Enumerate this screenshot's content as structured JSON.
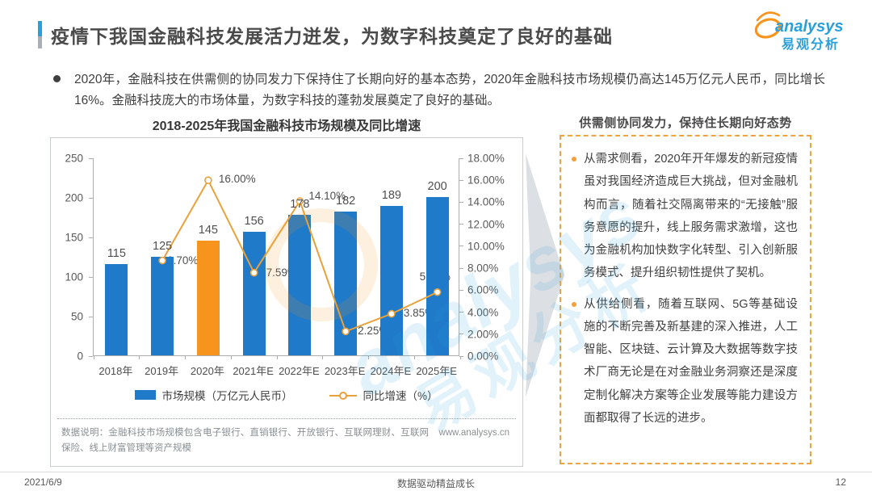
{
  "page": {
    "title": "疫情下我国金融科技发展活力迸发，为数字科技奠定了良好的基础",
    "footer": {
      "date": "2021/6/9",
      "slogan": "数据驱动精益成长",
      "page_number": "12"
    }
  },
  "logo": {
    "brand": "analysys",
    "brand_cn": "易观分析"
  },
  "summary_bullet": "2020年，金融科技在供需侧的协同发力下保持住了长期向好的基本态势，2020年金融科技市场规模仍高达145万亿元人民币，同比增长16%。金融科技庞大的市场体量，为数字科技的蓬勃发展奠定了良好的基础。",
  "chart": {
    "title": "2018-2025年我国金融科技市场规模及同比增速",
    "footnote": "数据说明：金融科技市场规模包含电子银行、直销银行、开放银行、互联网理财、互联网保险、线上财富管理等资产规模",
    "website": "www.analysys.cn"
  },
  "chart_data": {
    "type": "bar",
    "title": "2018-2025年我国金融科技市场规模及同比增速",
    "categories": [
      "2018年",
      "2019年",
      "2020年",
      "2021年E",
      "2022年E",
      "2023年E",
      "2024年E",
      "2025年E"
    ],
    "series": [
      {
        "name": "市场规模（万亿元人民币）",
        "type": "bar",
        "values": [
          115,
          125,
          145,
          156,
          178,
          182,
          189,
          200
        ],
        "color": "#1F7AC9",
        "highlight_index": 2,
        "highlight_color": "#F7941E"
      },
      {
        "name": "同比增速（%）",
        "type": "line",
        "values": [
          null,
          8.7,
          16.0,
          7.59,
          14.1,
          2.25,
          3.85,
          5.82
        ],
        "labels": [
          null,
          "8.70%",
          "16.00%",
          "7.59%",
          "14.10%",
          "2.25%",
          "3.85%",
          "5.82%"
        ],
        "color": "#E9A23B"
      }
    ],
    "left_axis": {
      "min": 0,
      "max": 250,
      "step": 50
    },
    "right_axis": {
      "min": 0,
      "max": 18,
      "step": 2,
      "format": "percent"
    },
    "grid": false,
    "legend_position": "bottom"
  },
  "insight_panel": {
    "header": "供需侧协同发力，保持住长期向好态势",
    "bullets": [
      "从需求侧看，2020年开年爆发的新冠疫情虽对我国经济造成巨大挑战，但对金融机构而言，随着社交隔离带来的“无接触”服务意愿的提升，线上服务需求激增，这也为金融机构加快数字化转型、引入创新服务模式、提升组织韧性提供了契机。",
      "从供给侧看，随着互联网、5G等基础设施的不断完善及新基建的深入推进，人工智能、区块链、云计算及大数据等数字技术厂商无论是在对金融业务洞察还是深度定制化解决方案等企业发展等能力建设方面都取得了长远的进步。"
    ]
  },
  "watermark": {
    "line1": "analysys",
    "line2": "易观分析"
  }
}
